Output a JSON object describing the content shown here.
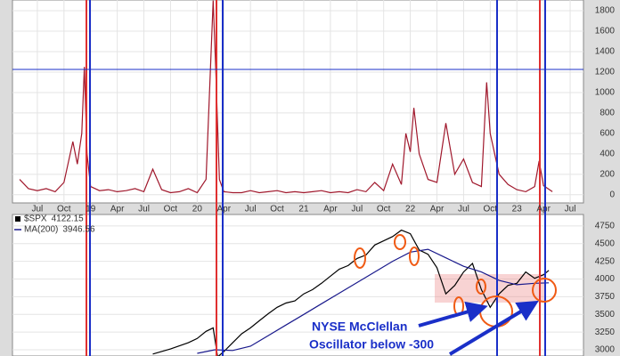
{
  "chart_data": [
    {
      "type": "line",
      "x": [
        4,
        5,
        6,
        7,
        8,
        9,
        10,
        10.5,
        11,
        11.3,
        11.6,
        12,
        13,
        14,
        15,
        16,
        17,
        18,
        19,
        20,
        21,
        22,
        23,
        24,
        25,
        25.8,
        26.1,
        26.5,
        27,
        28,
        29,
        30,
        31,
        32,
        33,
        34,
        35,
        36,
        37,
        38,
        39,
        40,
        41,
        42,
        43,
        44,
        45,
        46,
        47,
        47.5,
        48,
        48.4,
        49,
        50,
        51,
        52,
        53,
        54,
        55,
        56,
        56.6,
        57,
        58,
        59,
        60,
        61,
        62,
        62.5,
        63,
        64
      ],
      "series": [
        {
          "color": "#a0182c",
          "values": [
            150,
            60,
            40,
            60,
            30,
            120,
            520,
            300,
            600,
            1250,
            400,
            80,
            40,
            50,
            30,
            40,
            60,
            30,
            250,
            50,
            20,
            30,
            60,
            20,
            150,
            1900,
            1200,
            150,
            30,
            20,
            20,
            40,
            20,
            30,
            40,
            20,
            30,
            20,
            30,
            40,
            20,
            30,
            20,
            50,
            30,
            120,
            40,
            300,
            100,
            600,
            420,
            850,
            400,
            150,
            120,
            700,
            200,
            350,
            120,
            80,
            1100,
            600,
            200,
            100,
            50,
            30,
            80,
            330,
            90,
            30
          ]
        }
      ],
      "xlim": [
        3.2,
        67.5
      ],
      "ylim": [
        -80,
        1905
      ],
      "xticks": [
        {
          "value": 6,
          "label": "Jul"
        },
        {
          "value": 9,
          "label": "Oct"
        },
        {
          "value": 12,
          "label": "19"
        },
        {
          "value": 15,
          "label": "Apr"
        },
        {
          "value": 18,
          "label": "Jul"
        },
        {
          "value": 21,
          "label": "Oct"
        },
        {
          "value": 24,
          "label": "20"
        },
        {
          "value": 27,
          "label": "Apr"
        },
        {
          "value": 30,
          "label": "Jul"
        },
        {
          "value": 33,
          "label": "Oct"
        },
        {
          "value": 36,
          "label": "21"
        },
        {
          "value": 39,
          "label": "Apr"
        },
        {
          "value": 42,
          "label": "Jul"
        },
        {
          "value": 45,
          "label": "Oct"
        },
        {
          "value": 48,
          "label": "22"
        },
        {
          "value": 51,
          "label": "Apr"
        },
        {
          "value": 54,
          "label": "Jul"
        },
        {
          "value": 57,
          "label": "Oct"
        },
        {
          "value": 60,
          "label": "23"
        },
        {
          "value": 63,
          "label": "Apr"
        },
        {
          "value": 66,
          "label": "Jul"
        }
      ],
      "yticks": [
        0,
        200,
        400,
        600,
        800,
        1000,
        1200,
        1400,
        1600,
        1800
      ],
      "grid": true
    },
    {
      "type": "line",
      "xlim": [
        3.2,
        67.5
      ],
      "ylim": [
        2912,
        4912
      ],
      "yticks": [
        3000,
        3250,
        3500,
        3750,
        4000,
        4250,
        4500,
        4750
      ],
      "grid": true,
      "series": [
        {
          "name": "$SPX",
          "color": "#000000",
          "x": [
            19,
            21,
            23,
            24,
            25,
            25.8,
            26.3,
            27,
            28,
            29,
            30,
            31,
            32,
            33,
            34,
            35,
            36,
            37,
            38,
            39,
            40,
            41,
            42,
            43,
            44,
            45,
            46,
            47,
            48,
            49,
            50,
            51,
            52,
            53,
            54,
            55,
            56,
            57,
            58,
            59,
            60,
            61,
            62,
            63,
            63.6
          ],
          "values": [
            2940,
            3012,
            3100,
            3160,
            3260,
            3310,
            2900,
            2975,
            3100,
            3225,
            3310,
            3410,
            3510,
            3600,
            3660,
            3690,
            3790,
            3850,
            3940,
            4040,
            4140,
            4190,
            4290,
            4340,
            4480,
            4540,
            4600,
            4690,
            4640,
            4410,
            4350,
            4160,
            3790,
            3910,
            4100,
            4220,
            3850,
            3600,
            3790,
            3910,
            3940,
            4100,
            4010,
            4060,
            4122.15
          ]
        },
        {
          "name": "MA(200)",
          "color": "#1a1a8c",
          "x": [
            24,
            26,
            28,
            30,
            32,
            34,
            36,
            38,
            40,
            42,
            44,
            46,
            48,
            50,
            52,
            54,
            56,
            58,
            60,
            62,
            63.6
          ],
          "values": [
            2950,
            3000,
            2990,
            3050,
            3200,
            3350,
            3500,
            3650,
            3800,
            3950,
            4100,
            4250,
            4380,
            4420,
            4300,
            4180,
            4100,
            3980,
            3920,
            3940,
            3946.56
          ]
        }
      ],
      "annotations": [
        "NYSE McClellan",
        "Oscillator below -300"
      ]
    }
  ]
}
